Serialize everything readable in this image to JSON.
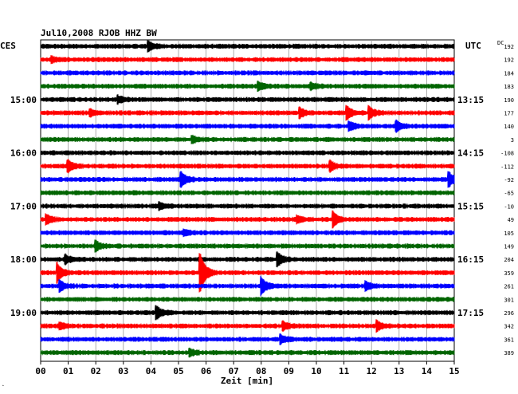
{
  "header": {
    "title": "Jul10,2008   RJOB HHZ BW",
    "left_tz": "CES",
    "right_tz": "UTC",
    "dc_label": "DC"
  },
  "chart_data": {
    "type": "line",
    "title": "Jul10,2008   RJOB HHZ BW",
    "xlabel": "Zeit [min]",
    "ylabel": "",
    "xlim": [
      0,
      15
    ],
    "x_ticks": [
      "00",
      "01",
      "02",
      "03",
      "04",
      "05",
      "06",
      "07",
      "08",
      "09",
      "10",
      "11",
      "12",
      "13",
      "14",
      "15"
    ],
    "trace_colors": [
      "#000000",
      "#ff0000",
      "#0000ff",
      "#006400"
    ],
    "left_time_labels": [
      {
        "trace": 4,
        "label": "15:00"
      },
      {
        "trace": 8,
        "label": "16:00"
      },
      {
        "trace": 12,
        "label": "17:00"
      },
      {
        "trace": 16,
        "label": "18:00"
      },
      {
        "trace": 20,
        "label": "19:00"
      }
    ],
    "right_time_labels": [
      {
        "trace": 4,
        "label": "13:15"
      },
      {
        "trace": 8,
        "label": "14:15"
      },
      {
        "trace": 12,
        "label": "15:15"
      },
      {
        "trace": 16,
        "label": "16:15"
      },
      {
        "trace": 20,
        "label": "17:15"
      }
    ],
    "dc_offsets": [
      "192",
      "192",
      "184",
      "183",
      "190",
      "177",
      "140",
      "3",
      "-108",
      "-112",
      "-92",
      "-65",
      "-10",
      "49",
      "105",
      "149",
      "204",
      "359",
      "261",
      "301",
      "296",
      "342",
      "361",
      "389"
    ],
    "events": [
      {
        "trace": 0,
        "minute": 3.9,
        "amp": 0.6
      },
      {
        "trace": 1,
        "minute": 0.4,
        "amp": 0.3
      },
      {
        "trace": 3,
        "minute": 7.9,
        "amp": 0.5
      },
      {
        "trace": 3,
        "minute": 9.8,
        "amp": 0.4
      },
      {
        "trace": 4,
        "minute": 2.8,
        "amp": 0.4
      },
      {
        "trace": 5,
        "minute": 1.8,
        "amp": 0.4
      },
      {
        "trace": 5,
        "minute": 9.4,
        "amp": 0.6
      },
      {
        "trace": 5,
        "minute": 11.1,
        "amp": 0.8
      },
      {
        "trace": 5,
        "minute": 11.9,
        "amp": 0.8
      },
      {
        "trace": 6,
        "minute": 11.2,
        "amp": 0.5
      },
      {
        "trace": 6,
        "minute": 12.9,
        "amp": 0.6
      },
      {
        "trace": 7,
        "minute": 5.5,
        "amp": 0.4
      },
      {
        "trace": 9,
        "minute": 1.0,
        "amp": 0.7
      },
      {
        "trace": 9,
        "minute": 10.5,
        "amp": 0.6
      },
      {
        "trace": 10,
        "minute": 5.1,
        "amp": 0.9
      },
      {
        "trace": 10,
        "minute": 14.8,
        "amp": 0.9
      },
      {
        "trace": 12,
        "minute": 4.3,
        "amp": 0.4
      },
      {
        "trace": 13,
        "minute": 0.2,
        "amp": 0.6
      },
      {
        "trace": 13,
        "minute": 9.3,
        "amp": 0.4
      },
      {
        "trace": 13,
        "minute": 10.6,
        "amp": 1.0
      },
      {
        "trace": 14,
        "minute": 5.2,
        "amp": 0.3
      },
      {
        "trace": 15,
        "minute": 2.0,
        "amp": 0.6
      },
      {
        "trace": 16,
        "minute": 0.9,
        "amp": 0.5
      },
      {
        "trace": 16,
        "minute": 8.6,
        "amp": 0.8
      },
      {
        "trace": 17,
        "minute": 0.6,
        "amp": 1.2
      },
      {
        "trace": 17,
        "minute": 5.8,
        "amp": 2.4
      },
      {
        "trace": 18,
        "minute": 0.7,
        "amp": 0.6
      },
      {
        "trace": 18,
        "minute": 8.0,
        "amp": 1.1
      },
      {
        "trace": 18,
        "minute": 11.8,
        "amp": 0.5
      },
      {
        "trace": 20,
        "minute": 4.2,
        "amp": 0.8
      },
      {
        "trace": 21,
        "minute": 0.7,
        "amp": 0.4
      },
      {
        "trace": 21,
        "minute": 8.8,
        "amp": 0.5
      },
      {
        "trace": 21,
        "minute": 12.2,
        "amp": 0.6
      },
      {
        "trace": 22,
        "minute": 8.7,
        "amp": 0.5
      },
      {
        "trace": 23,
        "minute": 5.4,
        "amp": 0.4
      }
    ],
    "grid": true
  }
}
